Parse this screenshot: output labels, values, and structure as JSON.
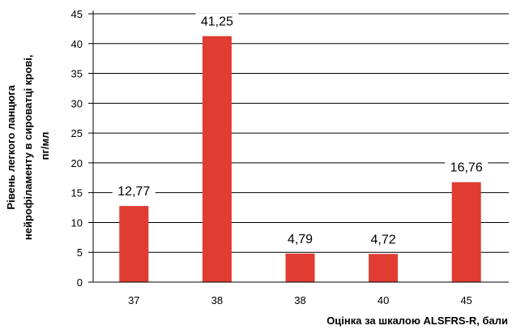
{
  "chart_data": {
    "type": "bar",
    "categories": [
      "37",
      "38",
      "38",
      "40",
      "45"
    ],
    "values": [
      12.77,
      41.25,
      4.79,
      4.72,
      16.76
    ],
    "data_labels": [
      "12,77",
      "41,25",
      "4,79",
      "4,72",
      "16,76"
    ],
    "title": "",
    "xlabel": "Оцінка за шкалою ALSFRS-R, бали",
    "ylabel_lines": [
      "Рівень легкого ланцюга",
      "нейрофіламенту в сироватці крові,",
      "пг/мл"
    ],
    "ylim": [
      0,
      45
    ],
    "yticks": [
      0,
      5,
      10,
      15,
      20,
      25,
      30,
      35,
      40,
      45
    ],
    "grid": true,
    "legend": "none",
    "bar_color": "#e03c31",
    "grid_color": "#000000"
  }
}
